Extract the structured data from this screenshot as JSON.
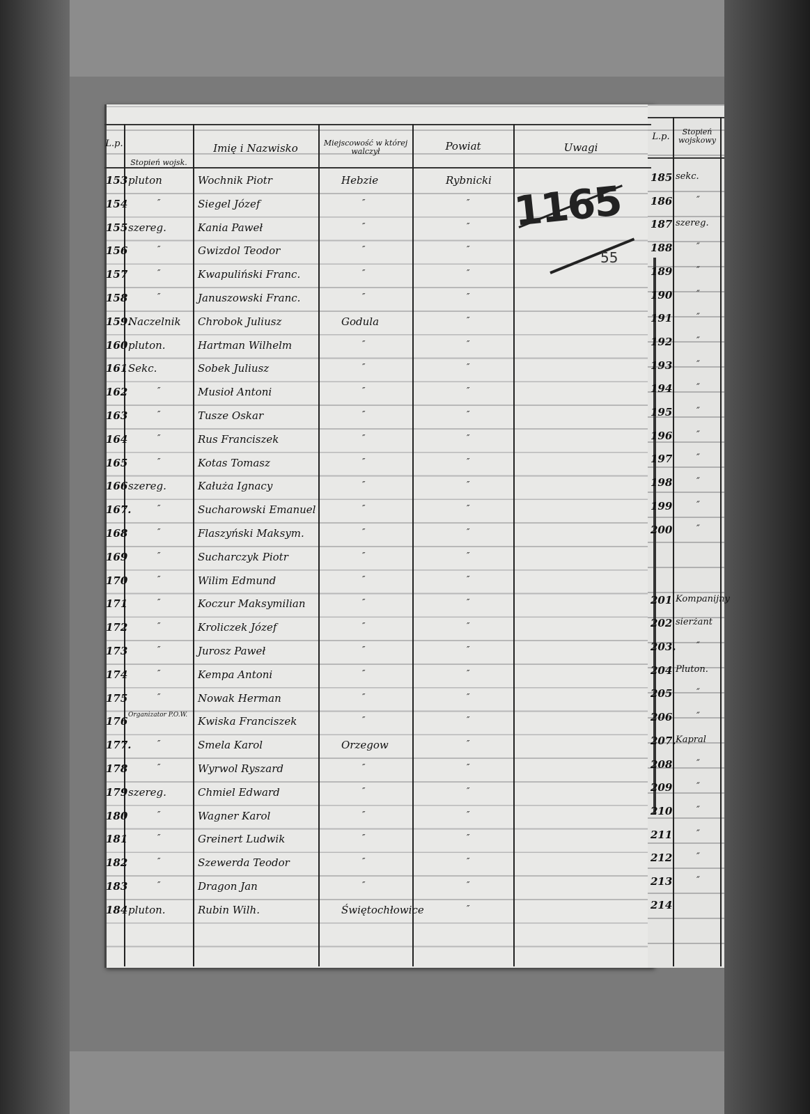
{
  "headers": {
    "lp": "L.p.",
    "rank": "Stopień wojsk.",
    "name": "Imię i Nazwisko",
    "place": "Miejscowość w której walczył",
    "county": "Powiat",
    "remarks": "Uwagi"
  },
  "right_headers": {
    "lp": "L.p.",
    "rank": "Stopień wojskowy"
  },
  "archive_number": "1165",
  "archive_subnumber": "55",
  "rows": [
    {
      "lp": "153",
      "rank": "pluton",
      "name": "Wochnik Piotr",
      "place": "Hebzie",
      "county": "Rybnicki"
    },
    {
      "lp": "154",
      "rank": "″",
      "name": "Siegel Józef",
      "place": "″",
      "county": "″"
    },
    {
      "lp": "155",
      "rank": "szereg.",
      "name": "Kania Paweł",
      "place": "″",
      "county": "″"
    },
    {
      "lp": "156",
      "rank": "″",
      "name": "Gwizdol Teodor",
      "place": "″",
      "county": "″"
    },
    {
      "lp": "157",
      "rank": "″",
      "name": "Kwapuliński Franc.",
      "place": "″",
      "county": "″"
    },
    {
      "lp": "158",
      "rank": "″",
      "name": "Januszowski Franc.",
      "place": "″",
      "county": "″"
    },
    {
      "lp": "159.",
      "rank": "Naczelnik",
      "name": "Chrobok Juliusz",
      "place": "Godula",
      "county": "″"
    },
    {
      "lp": "160",
      "rank": "pluton.",
      "name": "Hartman Wilhelm",
      "place": "″",
      "county": "″"
    },
    {
      "lp": "161",
      "rank": "Sekc.",
      "name": "Sobek Juliusz",
      "place": "″",
      "county": "″"
    },
    {
      "lp": "162",
      "rank": "″",
      "name": "Musioł Antoni",
      "place": "″",
      "county": "″"
    },
    {
      "lp": "163",
      "rank": "″",
      "name": "Tusze Oskar",
      "place": "″",
      "county": "″"
    },
    {
      "lp": "164",
      "rank": "″",
      "name": "Rus Franciszek",
      "place": "″",
      "county": "″"
    },
    {
      "lp": "165",
      "rank": "″",
      "name": "Kotas Tomasz",
      "place": "″",
      "county": "″"
    },
    {
      "lp": "166",
      "rank": "szereg.",
      "name": "Kałuża Ignacy",
      "place": "″",
      "county": "″"
    },
    {
      "lp": "167.",
      "rank": "″",
      "name": "Sucharowski Emanuel",
      "place": "″",
      "county": "″"
    },
    {
      "lp": "168",
      "rank": "″",
      "name": "Flaszyński Maksym.",
      "place": "″",
      "county": "″"
    },
    {
      "lp": "169",
      "rank": "″",
      "name": "Sucharczyk Piotr",
      "place": "″",
      "county": "″"
    },
    {
      "lp": "170",
      "rank": "″",
      "name": "Wilim Edmund",
      "place": "″",
      "county": "″"
    },
    {
      "lp": "171",
      "rank": "″",
      "name": "Koczur Maksymilian",
      "place": "″",
      "county": "″"
    },
    {
      "lp": "172",
      "rank": "″",
      "name": "Kroliczek Józef",
      "place": "″",
      "county": "″"
    },
    {
      "lp": "173",
      "rank": "″",
      "name": "Jurosz Paweł",
      "place": "″",
      "county": "″"
    },
    {
      "lp": "174",
      "rank": "″",
      "name": "Kempa Antoni",
      "place": "″",
      "county": "″"
    },
    {
      "lp": "175",
      "rank": "″",
      "name": "Nowak Herman",
      "place": "″",
      "county": "″"
    },
    {
      "lp": "176",
      "rank": "Organizator P.O.W.",
      "name": "Kwiska Franciszek",
      "place": "″",
      "county": "″"
    },
    {
      "lp": "177.",
      "rank": "″",
      "name": "Smela Karol",
      "place": "Orzegow",
      "county": "″"
    },
    {
      "lp": "178",
      "rank": "″",
      "name": "Wyrwol Ryszard",
      "place": "″",
      "county": "″"
    },
    {
      "lp": "179",
      "rank": "szereg.",
      "name": "Chmiel Edward",
      "place": "″",
      "county": "″"
    },
    {
      "lp": "180",
      "rank": "″",
      "name": "Wagner Karol",
      "place": "″",
      "county": "″"
    },
    {
      "lp": "181",
      "rank": "″",
      "name": "Greinert Ludwik",
      "place": "″",
      "county": "″"
    },
    {
      "lp": "182",
      "rank": "″",
      "name": "Szewerda Teodor",
      "place": "″",
      "county": "″"
    },
    {
      "lp": "183",
      "rank": "″",
      "name": "Dragon Jan",
      "place": "″",
      "county": "″"
    },
    {
      "lp": "184",
      "rank": "pluton.",
      "name": "Rubin Wilh.",
      "place": "Świętochłowice",
      "county": "″"
    }
  ],
  "right_rows": [
    {
      "lp": "185",
      "rank": "sekc."
    },
    {
      "lp": "186",
      "rank": "″"
    },
    {
      "lp": "187",
      "rank": "szereg."
    },
    {
      "lp": "188",
      "rank": "″"
    },
    {
      "lp": "189",
      "rank": "″"
    },
    {
      "lp": "190",
      "rank": "″"
    },
    {
      "lp": "191",
      "rank": "″"
    },
    {
      "lp": "192",
      "rank": "″"
    },
    {
      "lp": "193",
      "rank": "″"
    },
    {
      "lp": "194",
      "rank": "″"
    },
    {
      "lp": "195",
      "rank": "″"
    },
    {
      "lp": "196",
      "rank": "″"
    },
    {
      "lp": "197",
      "rank": "″"
    },
    {
      "lp": "198",
      "rank": "″"
    },
    {
      "lp": "199",
      "rank": "″"
    },
    {
      "lp": "200",
      "rank": "″"
    },
    {
      "lp": "",
      "rank": ""
    },
    {
      "lp": "",
      "rank": ""
    },
    {
      "lp": "201",
      "rank": "Kompanijny"
    },
    {
      "lp": "202",
      "rank": "sierżant"
    },
    {
      "lp": "203.",
      "rank": "″"
    },
    {
      "lp": "204",
      "rank": "Pluton."
    },
    {
      "lp": "205",
      "rank": "″"
    },
    {
      "lp": "206",
      "rank": "″"
    },
    {
      "lp": "207.",
      "rank": "Kapral"
    },
    {
      "lp": "208",
      "rank": "″"
    },
    {
      "lp": "209",
      "rank": "″"
    },
    {
      "lp": "210",
      "rank": "″"
    },
    {
      "lp": "211",
      "rank": "″"
    },
    {
      "lp": "212",
      "rank": "″"
    },
    {
      "lp": "213",
      "rank": "″"
    },
    {
      "lp": "214",
      "rank": ""
    }
  ]
}
